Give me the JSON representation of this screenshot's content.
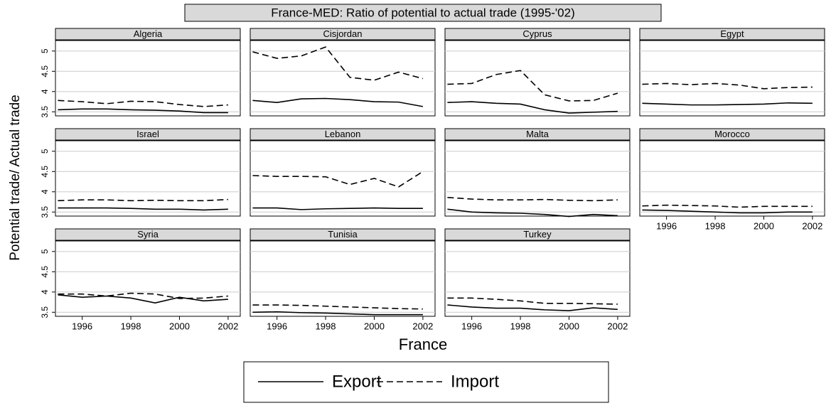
{
  "chart_data": {
    "type": "line",
    "title": "France-MED: Ratio of potential to actual trade  (1995-'02)",
    "x_label": "France",
    "y_label": "Potential trade/ Actual trade",
    "x": [
      1995,
      1996,
      1997,
      1998,
      1999,
      2000,
      2001,
      2002
    ],
    "xlim": [
      1994.9,
      2002.5
    ],
    "xticks": [
      1996,
      1998,
      2000,
      2002
    ],
    "ylim": [
      3.4,
      5.26
    ],
    "yticks": [
      3.5,
      4,
      4.5,
      5
    ],
    "grid": true,
    "legend": "bottom",
    "series": [
      {
        "name": "Export",
        "color": "#000000",
        "dash": "solid"
      },
      {
        "name": "Import",
        "color": "#000000",
        "dash": "dashed"
      }
    ],
    "panels": [
      {
        "title": "Algeria",
        "values": [
          [
            3.55,
            3.57,
            3.57,
            3.55,
            3.54,
            3.52,
            3.48,
            3.48
          ],
          [
            3.78,
            3.75,
            3.7,
            3.76,
            3.75,
            3.68,
            3.63,
            3.67
          ]
        ]
      },
      {
        "title": "Cisjordan",
        "values": [
          [
            3.78,
            3.73,
            3.82,
            3.83,
            3.8,
            3.75,
            3.74,
            3.63
          ],
          [
            4.98,
            4.82,
            4.88,
            5.1,
            4.35,
            4.28,
            4.48,
            4.32
          ]
        ]
      },
      {
        "title": "Cyprus",
        "values": [
          [
            3.73,
            3.75,
            3.71,
            3.69,
            3.55,
            3.47,
            3.49,
            3.51
          ],
          [
            4.18,
            4.2,
            4.42,
            4.52,
            3.92,
            3.77,
            3.78,
            3.96
          ]
        ]
      },
      {
        "title": "Egypt",
        "values": [
          [
            3.71,
            3.69,
            3.67,
            3.67,
            3.68,
            3.69,
            3.72,
            3.71
          ],
          [
            4.18,
            4.2,
            4.17,
            4.2,
            4.16,
            4.07,
            4.1,
            4.11
          ]
        ]
      },
      {
        "title": "Israel",
        "values": [
          [
            3.6,
            3.6,
            3.6,
            3.59,
            3.57,
            3.57,
            3.55,
            3.57
          ],
          [
            3.78,
            3.8,
            3.8,
            3.78,
            3.79,
            3.78,
            3.78,
            3.81
          ]
        ]
      },
      {
        "title": "Lebanon",
        "values": [
          [
            3.6,
            3.6,
            3.56,
            3.58,
            3.59,
            3.6,
            3.59,
            3.59
          ],
          [
            4.4,
            4.38,
            4.38,
            4.37,
            4.18,
            4.33,
            4.12,
            4.5
          ]
        ]
      },
      {
        "title": "Malta",
        "values": [
          [
            3.57,
            3.5,
            3.48,
            3.47,
            3.44,
            3.39,
            3.44,
            3.41
          ],
          [
            3.86,
            3.82,
            3.8,
            3.8,
            3.81,
            3.79,
            3.78,
            3.8
          ]
        ]
      },
      {
        "title": "Morocco",
        "values": [
          [
            3.55,
            3.54,
            3.52,
            3.5,
            3.48,
            3.48,
            3.5,
            3.5
          ],
          [
            3.65,
            3.67,
            3.66,
            3.65,
            3.62,
            3.64,
            3.64,
            3.64
          ]
        ]
      },
      {
        "title": "Syria",
        "values": [
          [
            3.93,
            3.87,
            3.9,
            3.85,
            3.73,
            3.87,
            3.78,
            3.82
          ],
          [
            3.95,
            3.95,
            3.9,
            3.97,
            3.95,
            3.84,
            3.85,
            3.9
          ]
        ]
      },
      {
        "title": "Tunisia",
        "values": [
          [
            3.5,
            3.51,
            3.49,
            3.48,
            3.46,
            3.44,
            3.44,
            3.44
          ],
          [
            3.68,
            3.68,
            3.67,
            3.65,
            3.63,
            3.61,
            3.59,
            3.58
          ]
        ]
      },
      {
        "title": "Turkey",
        "values": [
          [
            3.68,
            3.63,
            3.6,
            3.6,
            3.56,
            3.54,
            3.61,
            3.57
          ],
          [
            3.85,
            3.85,
            3.82,
            3.78,
            3.72,
            3.72,
            3.71,
            3.7
          ]
        ]
      }
    ]
  }
}
